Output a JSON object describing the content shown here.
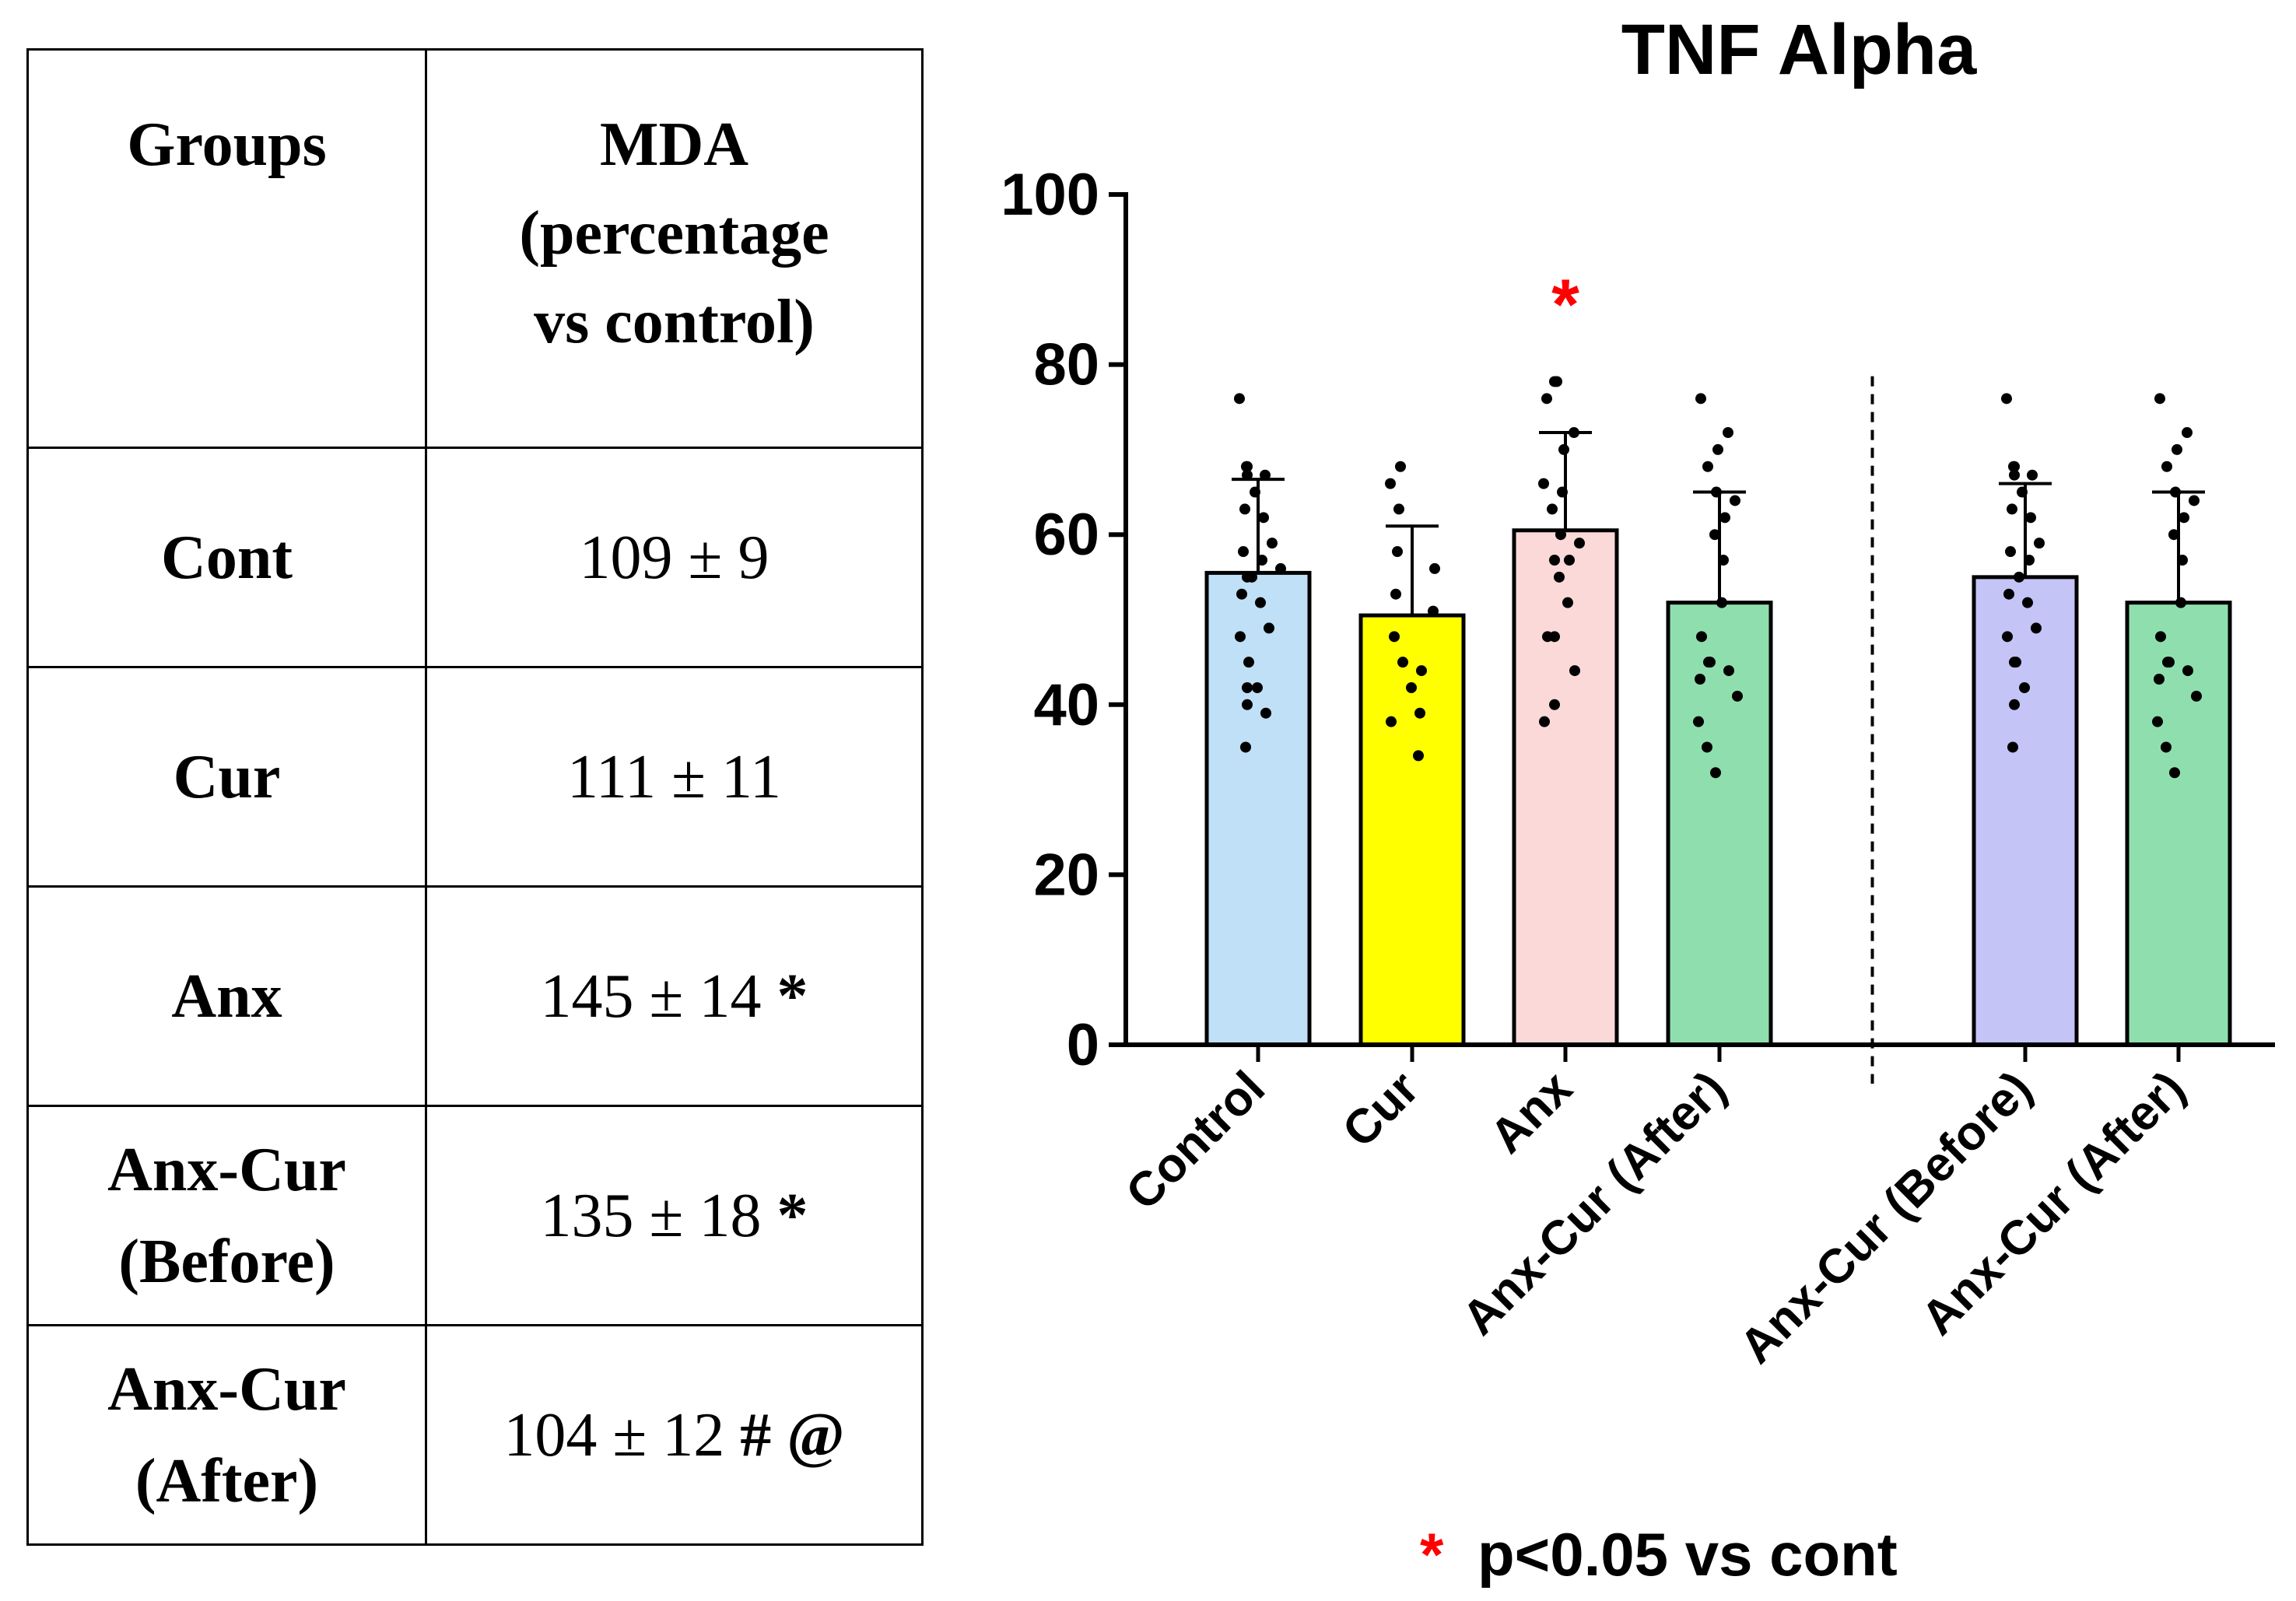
{
  "table": {
    "headers": {
      "groups": "Groups",
      "mda_lines": [
        "MDA",
        "(percentage",
        "vs control)"
      ]
    },
    "rows": [
      {
        "group_lines": [
          "Cont"
        ],
        "value": "109 ± 9",
        "sig": ""
      },
      {
        "group_lines": [
          "Cur"
        ],
        "value": "111 ± 11",
        "sig": ""
      },
      {
        "group_lines": [
          "Anx"
        ],
        "value": "145 ± 14",
        "sig": "*"
      },
      {
        "group_lines": [
          "Anx-Cur",
          "(Before)"
        ],
        "value": "135 ± 18",
        "sig": "*"
      },
      {
        "group_lines": [
          "Anx-Cur",
          "(After)"
        ],
        "value": "104 ± 12",
        "sig": "# @"
      }
    ]
  },
  "chart_data": {
    "type": "bar",
    "title": "TNF Alpha",
    "xlabel": "",
    "ylabel": "",
    "ylim": [
      0,
      100
    ],
    "yticks": [
      0,
      20,
      40,
      60,
      80,
      100
    ],
    "grid": false,
    "error_bars": "SD",
    "divider_after_index": 3,
    "categories": [
      "Control",
      "Cur",
      "Anx",
      "Anx-Cur (After)",
      "Anx-Cur (Before)",
      "Anx-Cur (After)"
    ],
    "values": [
      55.5,
      50.5,
      60.5,
      52,
      55,
      52
    ],
    "error_upper": [
      66.5,
      61,
      72,
      65,
      66,
      65
    ],
    "colors": [
      "#bfe0f6",
      "#ffff00",
      "#fbd9d9",
      "#8fdfae",
      "#c4c4f7",
      "#8fdfae"
    ],
    "points": [
      [
        35,
        39,
        40,
        42,
        42,
        45,
        48,
        49,
        52,
        53,
        55,
        55,
        56,
        57,
        58,
        59,
        62,
        63,
        65,
        67,
        67,
        68,
        68,
        76
      ],
      [
        34,
        38,
        39,
        42,
        44,
        45,
        48,
        51,
        53,
        56,
        58,
        63,
        66,
        68
      ],
      [
        38,
        40,
        44,
        48,
        48,
        52,
        55,
        57,
        57,
        59,
        60,
        63,
        65,
        66,
        70,
        72,
        76,
        78,
        78
      ],
      [
        32,
        35,
        38,
        41,
        43,
        44,
        45,
        45,
        48,
        52,
        57,
        60,
        62,
        64,
        65,
        68,
        70,
        72,
        76
      ],
      [
        35,
        40,
        42,
        45,
        45,
        48,
        49,
        52,
        53,
        55,
        57,
        58,
        59,
        62,
        63,
        65,
        67,
        67,
        68,
        68,
        76
      ],
      [
        32,
        35,
        38,
        41,
        43,
        44,
        45,
        45,
        48,
        52,
        57,
        60,
        62,
        64,
        65,
        68,
        70,
        72,
        76
      ]
    ],
    "annotations": [
      {
        "category_index": 2,
        "text": "*",
        "y": 88,
        "color": "#ff0000"
      }
    ],
    "footnote": {
      "symbol": "*",
      "text": "p<0.05 vs cont",
      "symbol_color": "#ff0000"
    }
  }
}
